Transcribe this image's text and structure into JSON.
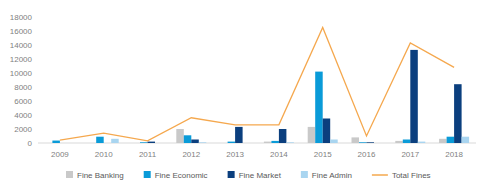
{
  "chart_data": {
    "type": "bar",
    "categories": [
      "2009",
      "2010",
      "2011",
      "2012",
      "2013",
      "2014",
      "2015",
      "2016",
      "2017",
      "2018"
    ],
    "series": [
      {
        "name": "Fine Banking",
        "type": "bar",
        "color": "#c9c9c9",
        "values": [
          0,
          0,
          0,
          2000,
          0,
          200,
          2300,
          800,
          300,
          600
        ]
      },
      {
        "name": "Fine Economic",
        "type": "bar",
        "color": "#0a9bd8",
        "values": [
          350,
          900,
          100,
          1100,
          200,
          300,
          10200,
          100,
          500,
          900
        ]
      },
      {
        "name": "Fine Market",
        "type": "bar",
        "color": "#0b3f7e",
        "values": [
          0,
          0,
          200,
          500,
          2300,
          2000,
          3500,
          100,
          13300,
          8400
        ]
      },
      {
        "name": "Fine Admin",
        "type": "bar",
        "color": "#a9d5f0",
        "values": [
          0,
          600,
          0,
          100,
          0,
          100,
          500,
          0,
          200,
          900
        ]
      },
      {
        "name": "Total Fines",
        "type": "line",
        "color": "#f5a84e",
        "values": [
          400,
          1400,
          300,
          3600,
          2600,
          2600,
          16500,
          1000,
          14300,
          10800
        ]
      }
    ],
    "ylim": [
      0,
      18000
    ],
    "yticks": [
      0,
      2000,
      4000,
      6000,
      8000,
      10000,
      12000,
      14000,
      16000,
      18000
    ],
    "grid": false,
    "legend": "bottom"
  }
}
